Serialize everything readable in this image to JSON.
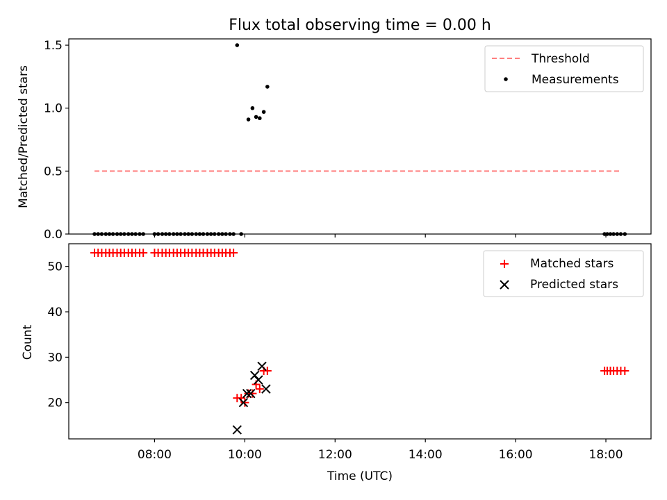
{
  "figure": {
    "title": "Flux total observing time = 0.00 h"
  },
  "chart_data": [
    {
      "type": "scatter",
      "ylabel": "Matched/Predicted stars",
      "xlabel": "",
      "x_unit": "hours UTC",
      "xlim": [
        6.1,
        19.0
      ],
      "ylim": [
        0.0,
        1.55
      ],
      "yticks": [
        0.0,
        0.5,
        1.0,
        1.5
      ],
      "ytick_labels": [
        "0.0",
        "0.5",
        "1.0",
        "1.5"
      ],
      "xticks": [
        8,
        10,
        12,
        14,
        16,
        18
      ],
      "xtick_labels_shown": false,
      "legend_position": "top-right",
      "grid": false,
      "threshold": {
        "name": "Threshold",
        "value": 0.5,
        "x_range": [
          6.67,
          18.33
        ],
        "color": "#ff7f7f",
        "style": "dashed"
      },
      "series": [
        {
          "name": "Measurements",
          "marker": "dot",
          "color": "#000000",
          "x": [
            6.67,
            6.75,
            6.83,
            6.92,
            7.0,
            7.08,
            7.17,
            7.25,
            7.33,
            7.42,
            7.5,
            7.58,
            7.67,
            7.75,
            8.0,
            8.08,
            8.17,
            8.25,
            8.33,
            8.42,
            8.5,
            8.58,
            8.67,
            8.75,
            8.83,
            8.92,
            9.0,
            9.08,
            9.17,
            9.25,
            9.33,
            9.42,
            9.5,
            9.58,
            9.67,
            9.75,
            9.92,
            9.83,
            10.08,
            10.17,
            10.25,
            10.33,
            10.42,
            10.5,
            17.97,
            18.03,
            18.1,
            18.17,
            18.25,
            18.33,
            18.42
          ],
          "y": [
            0,
            0,
            0,
            0,
            0,
            0,
            0,
            0,
            0,
            0,
            0,
            0,
            0,
            0,
            0,
            0,
            0,
            0,
            0,
            0,
            0,
            0,
            0,
            0,
            0,
            0,
            0,
            0,
            0,
            0,
            0,
            0,
            0,
            0,
            0,
            0,
            0,
            1.5,
            0.91,
            1.0,
            0.93,
            0.92,
            0.97,
            1.17,
            0,
            0,
            0,
            0,
            0,
            0,
            0
          ]
        }
      ]
    },
    {
      "type": "scatter",
      "ylabel": "Count",
      "xlabel": "Time (UTC)",
      "x_unit": "hours UTC",
      "xlim": [
        6.1,
        19.0
      ],
      "ylim": [
        12.0,
        55.0
      ],
      "yticks": [
        20,
        30,
        40,
        50
      ],
      "ytick_labels": [
        "20",
        "30",
        "40",
        "50"
      ],
      "xticks": [
        8,
        10,
        12,
        14,
        16,
        18
      ],
      "xtick_labels": [
        "08:00",
        "10:00",
        "12:00",
        "14:00",
        "16:00",
        "18:00"
      ],
      "legend_position": "top-right",
      "grid": false,
      "series": [
        {
          "name": "Matched stars",
          "marker": "plus",
          "color": "#ff0000",
          "x": [
            6.67,
            6.75,
            6.83,
            6.92,
            7.0,
            7.08,
            7.17,
            7.25,
            7.33,
            7.42,
            7.5,
            7.58,
            7.67,
            7.75,
            8.0,
            8.08,
            8.17,
            8.25,
            8.33,
            8.42,
            8.5,
            8.58,
            8.67,
            8.75,
            8.83,
            8.92,
            9.0,
            9.08,
            9.17,
            9.25,
            9.33,
            9.42,
            9.5,
            9.58,
            9.67,
            9.75,
            9.83,
            9.92,
            10.0,
            10.08,
            10.17,
            10.25,
            10.33,
            10.42,
            10.5,
            17.97,
            18.03,
            18.1,
            18.17,
            18.25,
            18.33,
            18.42
          ],
          "y": [
            53,
            53,
            53,
            53,
            53,
            53,
            53,
            53,
            53,
            53,
            53,
            53,
            53,
            53,
            53,
            53,
            53,
            53,
            53,
            53,
            53,
            53,
            53,
            53,
            53,
            53,
            53,
            53,
            53,
            53,
            53,
            53,
            53,
            53,
            53,
            53,
            21,
            21,
            20,
            22,
            22,
            24,
            23,
            27,
            27,
            27,
            27,
            27,
            27,
            27,
            27,
            27
          ]
        },
        {
          "name": "Predicted stars",
          "marker": "x",
          "color": "#000000",
          "x": [
            9.83,
            9.97,
            10.05,
            10.13,
            10.22,
            10.3,
            10.38,
            10.47
          ],
          "y": [
            14,
            20,
            22,
            22,
            26,
            25,
            28,
            23
          ]
        }
      ]
    }
  ]
}
